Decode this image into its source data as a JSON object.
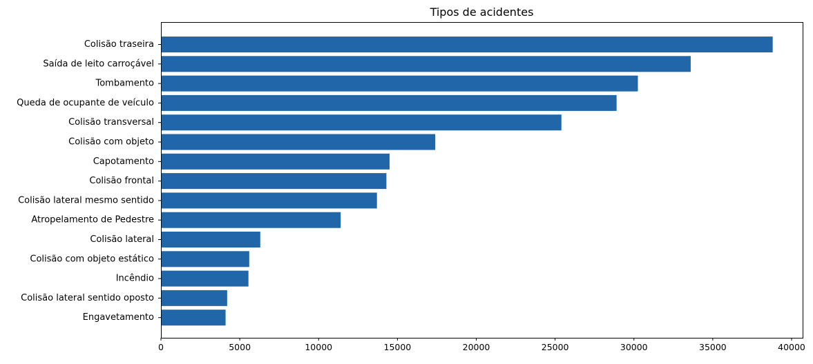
{
  "chart_data": {
    "type": "bar",
    "orientation": "horizontal",
    "title": "Tipos de acidentes",
    "xlabel": "",
    "ylabel": "",
    "xlim": [
      0,
      40700
    ],
    "xticks": [
      0,
      5000,
      10000,
      15000,
      20000,
      25000,
      30000,
      35000,
      40000
    ],
    "grid": false,
    "bar_color": "#2166a8",
    "categories": [
      "Colisão traseira",
      "Saída de leito carroçável",
      "Tombamento",
      "Queda de ocupante de veículo",
      "Colisão transversal",
      "Colisão com objeto",
      "Capotamento",
      "Colisão frontal",
      "Colisão lateral mesmo sentido",
      "Atropelamento de Pedestre",
      "Colisão lateral",
      "Colisão com objeto estático",
      "Incêndio",
      "Colisão lateral sentido oposto",
      "Engavetamento"
    ],
    "values": [
      38800,
      33600,
      30250,
      28900,
      25400,
      17400,
      14500,
      14300,
      13700,
      11400,
      6300,
      5600,
      5550,
      4200,
      4100
    ]
  }
}
